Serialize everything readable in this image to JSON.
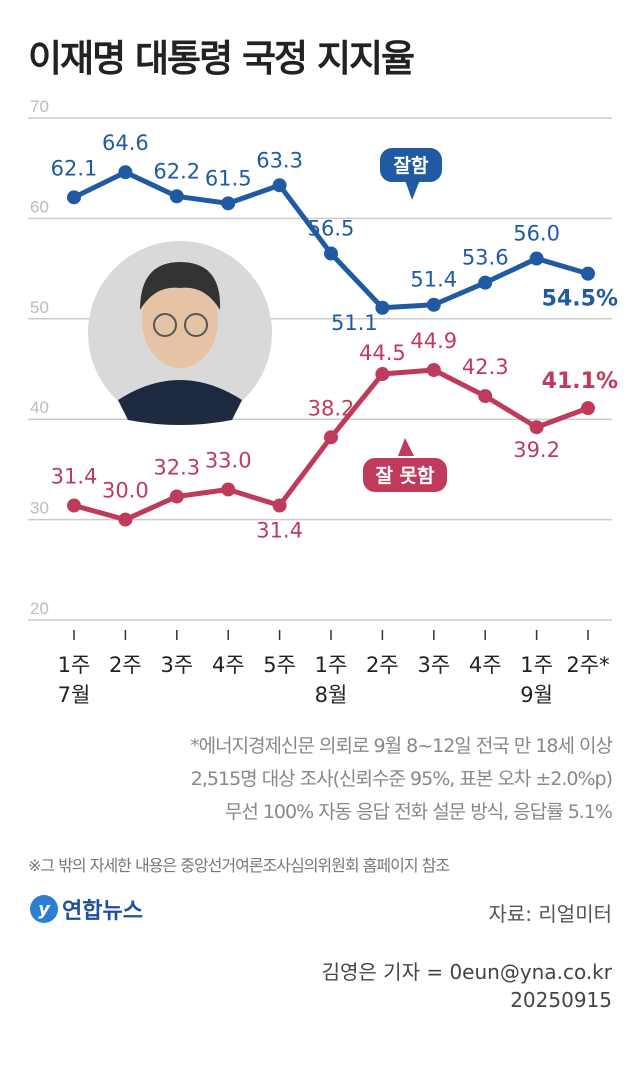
{
  "title": "이재명 대통령 국정 지지율",
  "chart_data": {
    "type": "line",
    "categories": [
      "1주",
      "2주",
      "3주",
      "4주",
      "5주",
      "1주",
      "2주",
      "3주",
      "4주",
      "1주",
      "2주*"
    ],
    "month_labels": [
      {
        "index": 0,
        "label": "7월"
      },
      {
        "index": 5,
        "label": "8월"
      },
      {
        "index": 9,
        "label": "9월"
      }
    ],
    "ylim": [
      20,
      70
    ],
    "yticks": [
      70,
      60,
      50,
      40,
      30,
      20
    ],
    "grid": true,
    "series": [
      {
        "name": "잘함",
        "color": "#1f5aa3",
        "values": [
          62.1,
          64.6,
          62.2,
          61.5,
          63.3,
          56.5,
          51.1,
          51.4,
          53.6,
          56.0,
          54.5
        ],
        "last_label": "54.5%"
      },
      {
        "name": "잘 못함",
        "color": "#c03a5c",
        "values": [
          31.4,
          30.0,
          32.3,
          33.0,
          31.4,
          38.2,
          44.5,
          44.9,
          42.3,
          39.2,
          41.1
        ],
        "last_label": "41.1%"
      }
    ]
  },
  "notes": [
    "*에너지경제신문 의뢰로 9월 8~12일 전국 만 18세 이상",
    "2,515명 대상 조사(신뢰수준 95%, 표본 오차 ±2.0%p)",
    "무선 100% 자동 응답 전화 설문 방식, 응답률 5.1%"
  ],
  "footnote": "※그 밖의 자세한 내용은 중앙선거여론조사심의위원회 홈페이지 참조",
  "logo": "연합뉴스",
  "source": "자료: 리얼미터",
  "credit": "김영은 기자 = 0eun@yna.co.kr",
  "date": "20250915"
}
